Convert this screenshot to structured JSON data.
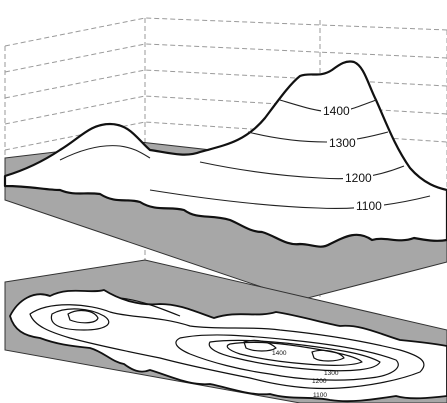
{
  "upper_contour_labels": [
    "1400",
    "1300",
    "1200",
    "1100"
  ],
  "map_contour_labels": [
    "1400",
    "1300",
    "1200",
    "1100"
  ],
  "colors": {
    "plane": "#a7a7a7",
    "terrain": "#ffffff",
    "outline": "#111111",
    "grid": "#9a9a9a"
  }
}
